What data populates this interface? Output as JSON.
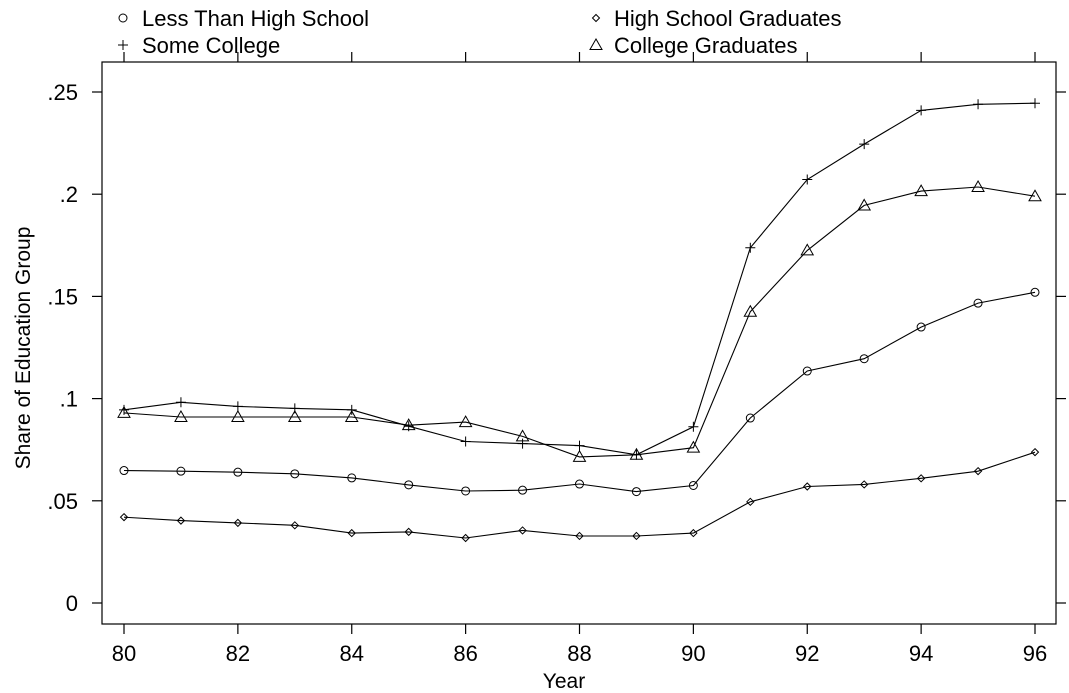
{
  "chart_data": {
    "type": "line",
    "title": "",
    "xlabel": "Year",
    "ylabel": "Share of Education Group",
    "xlim": [
      80,
      96
    ],
    "ylim": [
      0,
      0.25
    ],
    "xticks": [
      80,
      82,
      84,
      86,
      88,
      90,
      92,
      94,
      96
    ],
    "xtick_labels": [
      "80",
      "82",
      "84",
      "86",
      "88",
      "90",
      "92",
      "94",
      "96"
    ],
    "yticks": [
      0,
      0.05,
      0.1,
      0.15,
      0.2,
      0.25
    ],
    "ytick_labels": [
      "0",
      ".05",
      ".1",
      ".15",
      ".2",
      ".25"
    ],
    "grid": false,
    "legend_position": "top",
    "x": [
      80,
      81,
      82,
      83,
      84,
      85,
      86,
      87,
      88,
      89,
      90,
      91,
      92,
      93,
      94,
      95,
      96
    ],
    "series": [
      {
        "name": "Less Than High School",
        "marker": "circle",
        "values": [
          0.0648,
          0.0645,
          0.064,
          0.0632,
          0.0612,
          0.0578,
          0.0548,
          0.0552,
          0.0582,
          0.0545,
          0.0575,
          0.0905,
          0.1135,
          0.1195,
          0.135,
          0.1467,
          0.152
        ]
      },
      {
        "name": "High School Graduates",
        "marker": "diamond",
        "values": [
          0.042,
          0.0403,
          0.0392,
          0.038,
          0.0342,
          0.0348,
          0.0318,
          0.0355,
          0.0328,
          0.0328,
          0.0342,
          0.0495,
          0.057,
          0.058,
          0.061,
          0.0645,
          0.0738
        ]
      },
      {
        "name": "Some College",
        "marker": "plus",
        "values": [
          0.0945,
          0.0982,
          0.0962,
          0.0952,
          0.0945,
          0.0865,
          0.079,
          0.078,
          0.077,
          0.0725,
          0.0862,
          0.1738,
          0.2072,
          0.2245,
          0.241,
          0.244,
          0.2445
        ]
      },
      {
        "name": "College Graduates",
        "marker": "triangle",
        "values": [
          0.093,
          0.091,
          0.091,
          0.091,
          0.091,
          0.087,
          0.0885,
          0.0815,
          0.0715,
          0.0725,
          0.076,
          0.1425,
          0.1725,
          0.1945,
          0.2015,
          0.2035,
          0.199
        ]
      }
    ]
  }
}
